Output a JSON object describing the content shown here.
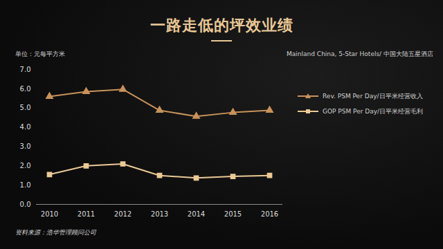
{
  "chart_data": {
    "type": "line",
    "title": "一路走低的坪效业绩",
    "subtitle": "Mainland China, 5-Star Hotels/ 中国大陆五星酒店",
    "y_label": "单位：元每平方米",
    "source": "资料来源：浩华管理顾问公司",
    "categories": [
      "2010",
      "2011",
      "2012",
      "2013",
      "2014",
      "2015",
      "2016"
    ],
    "series": [
      {
        "name": "Rev. PSM Per Day/日平米经营收入",
        "color": "#c8925a",
        "marker": "triangle",
        "line_style": "solid",
        "values": [
          5.6,
          5.85,
          5.97,
          4.88,
          4.57,
          4.77,
          4.88
        ]
      },
      {
        "name": "GOP PSM Per Day/日平米经营毛利",
        "color": "#ecc996",
        "marker": "square",
        "line_style": "solid",
        "values": [
          1.55,
          2.0,
          2.1,
          1.5,
          1.37,
          1.45,
          1.5
        ]
      }
    ],
    "ylim": [
      0,
      7
    ],
    "yticks": [
      {
        "value": 0,
        "label": "0.0"
      },
      {
        "value": 1,
        "label": "1.0"
      },
      {
        "value": 2,
        "label": "2.0"
      },
      {
        "value": 3,
        "label": "3.0"
      },
      {
        "value": 4,
        "label": "4.0"
      },
      {
        "value": 5,
        "label": "5.0"
      },
      {
        "value": 6,
        "label": "6.0"
      },
      {
        "value": 7,
        "label": "7.0"
      }
    ],
    "grid": false,
    "legend": "right"
  }
}
